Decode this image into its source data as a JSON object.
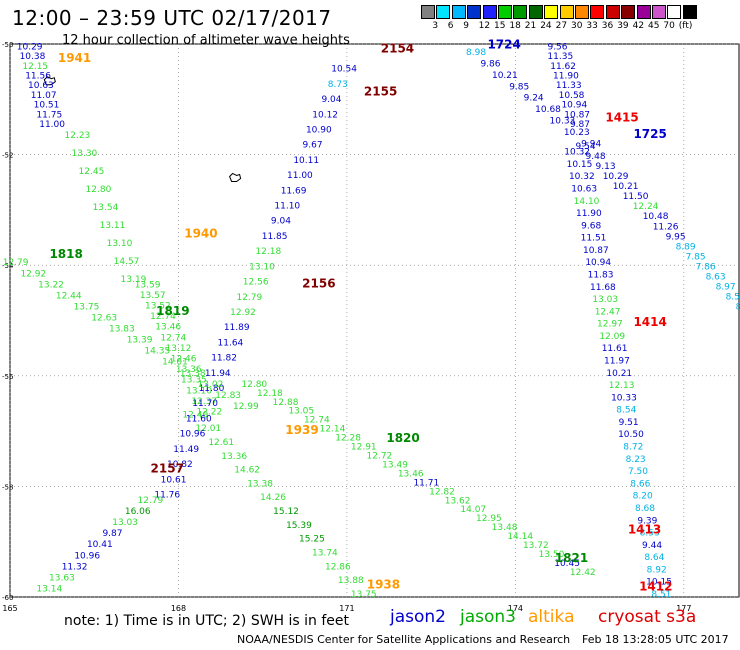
{
  "header": {
    "title": "12:00 – 23:59 UTC 02/17/2017",
    "subtitle": "12 hour collection of altimeter wave heights"
  },
  "colorbar": {
    "colors": [
      "#808080",
      "#00e5ff",
      "#00b8ff",
      "#0033cc",
      "#2222ff",
      "#00cc00",
      "#009900",
      "#006600",
      "#ffff00",
      "#ffcc00",
      "#ff8800",
      "#ff0000",
      "#cc0000",
      "#880000",
      "#990099",
      "#cc55cc",
      "#ffffff",
      "#000000"
    ],
    "labels": [
      "3",
      "6",
      "9",
      "12",
      "15",
      "18",
      "21",
      "24",
      "27",
      "30",
      "33",
      "36",
      "39",
      "42",
      "45",
      "70",
      "(ft)"
    ]
  },
  "map": {
    "lon_ticks": [
      "165",
      "168",
      "171",
      "174",
      "177"
    ],
    "lat_ticks": [
      "-50",
      "-52",
      "-54",
      "-56",
      "-58",
      "-60"
    ],
    "lon_range": [
      165,
      178
    ],
    "lat_range": [
      -60,
      -50
    ],
    "wave_height_colors": {
      "lt_9": "#00b3e6",
      "9_12": "#0000cc",
      "12_15": "#33dd33",
      "15_18": "#009900"
    },
    "pass_label_colors": {
      "jason2": "#0000cc",
      "jason3": "#008800",
      "altika": "#ff9900",
      "cryosat_red": "#ee0000",
      "cryosat_dark": "#800000"
    },
    "pass_labels": [
      {
        "text": "1941",
        "lon": 166.15,
        "lat": -50.33,
        "sat": "altika"
      },
      {
        "text": "2154",
        "lon": 171.9,
        "lat": -50.15,
        "sat": "cryosat_dark"
      },
      {
        "text": "1724",
        "lon": 173.8,
        "lat": -50.08,
        "sat": "jason2"
      },
      {
        "text": "2155",
        "lon": 171.6,
        "lat": -50.93,
        "sat": "cryosat_dark"
      },
      {
        "text": "1415",
        "lon": 175.9,
        "lat": -51.4,
        "sat": "cryosat_red"
      },
      {
        "text": "1725",
        "lon": 176.4,
        "lat": -51.7,
        "sat": "jason2"
      },
      {
        "text": "1940",
        "lon": 168.4,
        "lat": -53.5,
        "sat": "altika"
      },
      {
        "text": "1818",
        "lon": 166.0,
        "lat": -53.87,
        "sat": "jason3"
      },
      {
        "text": "2156",
        "lon": 170.5,
        "lat": -54.4,
        "sat": "cryosat_dark"
      },
      {
        "text": "1819",
        "lon": 167.9,
        "lat": -54.9,
        "sat": "jason3"
      },
      {
        "text": "1414",
        "lon": 176.4,
        "lat": -55.1,
        "sat": "cryosat_red"
      },
      {
        "text": "1939",
        "lon": 170.2,
        "lat": -57.05,
        "sat": "altika"
      },
      {
        "text": "1820",
        "lon": 172.0,
        "lat": -57.2,
        "sat": "jason3"
      },
      {
        "text": "2157",
        "lon": 167.8,
        "lat": -57.75,
        "sat": "cryosat_dark"
      },
      {
        "text": "1413",
        "lon": 176.3,
        "lat": -58.85,
        "sat": "cryosat_red"
      },
      {
        "text": "1821",
        "lon": 175.0,
        "lat": -59.37,
        "sat": "jason3"
      },
      {
        "text": "1938",
        "lon": 171.65,
        "lat": -59.85,
        "sat": "altika"
      },
      {
        "text": "1412",
        "lon": 176.5,
        "lat": -59.88,
        "sat": "cryosat_red"
      }
    ],
    "tracks": [
      {
        "id": "t1941",
        "start": [
          165.35,
          -50.1
        ],
        "end": [
          165.75,
          -51.5
        ],
        "values": [
          "10.29",
          "10.38",
          "12.15",
          "11.56",
          "10.63",
          "11.07",
          "10.51",
          "11.75",
          "11.00"
        ]
      },
      {
        "id": "t1940",
        "start": [
          166.2,
          -51.7
        ],
        "end": [
          167.2,
          -54.3
        ],
        "values": [
          "12.23",
          "13.30",
          "12.45",
          "12.80",
          "13.54",
          "13.11",
          "13.10",
          "14.57",
          "13.19"
        ]
      },
      {
        "id": "t1819",
        "start": [
          167.45,
          -54.4
        ],
        "end": [
          168.55,
          -56.7
        ],
        "values": [
          "13.59",
          "13.57",
          "13.52",
          "12.74",
          "13.46",
          "12.74",
          "13.12",
          "12.46",
          "13.36",
          "13.35",
          "13.10",
          "12.37",
          "12.22"
        ]
      },
      {
        "id": "t1939",
        "start": [
          168.3,
          -56.75
        ],
        "end": [
          171.3,
          -60.0
        ],
        "values": [
          "12.40",
          "12.01",
          "12.61",
          "13.36",
          "14.62",
          "13.38",
          "14.26",
          "15.12",
          "15.39",
          "15.25",
          "13.74",
          "12.86",
          "13.88",
          "13.75"
        ]
      },
      {
        "id": "t2155",
        "start": [
          170.95,
          -50.5
        ],
        "end": [
          167.8,
          -58.2
        ],
        "values": [
          "10.54",
          "8.73",
          "9.04",
          "10.12",
          "10.90",
          "9.67",
          "10.11",
          "11.00",
          "11.69",
          "11.10",
          "9.04",
          "11.85",
          "12.18",
          "13.10",
          "12.56",
          "12.79",
          "12.92",
          "11.89",
          "11.64",
          "11.82",
          "11.94",
          "11.80",
          "11.70",
          "11.60",
          "10.96",
          "11.49",
          "10.82",
          "10.61",
          "11.76"
        ]
      },
      {
        "id": "t2157",
        "start": [
          167.5,
          -58.3
        ],
        "end": [
          165.7,
          -59.9
        ],
        "values": [
          "12.79",
          "16.06",
          "13.03",
          "9.87",
          "10.41",
          "10.96",
          "11.32",
          "13.63",
          "13.14"
        ]
      },
      {
        "id": "t1818",
        "start": [
          165.1,
          -54.0
        ],
        "end": [
          169.2,
          -56.6
        ],
        "values": [
          "12.79",
          "12.92",
          "13.22",
          "12.44",
          "13.75",
          "12.63",
          "13.83",
          "13.39",
          "14.35",
          "14.01",
          "13.38",
          "13.02",
          "12.83",
          "12.99"
        ]
      },
      {
        "id": "t1820",
        "start": [
          169.35,
          -56.2
        ],
        "end": [
          175.2,
          -59.6
        ],
        "values": [
          "12.80",
          "12.18",
          "12.88",
          "13.05",
          "12.74",
          "12.14",
          "12.28",
          "12.91",
          "12.72",
          "13.49",
          "13.46",
          "11.71",
          "12.82",
          "13.62",
          "14.07",
          "12.95",
          "13.48",
          "14.14",
          "13.72",
          "13.50",
          "10.45",
          "12.42"
        ]
      },
      {
        "id": "t1724",
        "start": [
          173.3,
          -50.2
        ],
        "end": [
          175.35,
          -51.85
        ],
        "values": [
          "8.98",
          "9.86",
          "10.21",
          "9.85",
          "9.24",
          "10.68",
          "10.33",
          "10.23",
          "9.94"
        ]
      },
      {
        "id": "t1725",
        "start": [
          174.75,
          -50.1
        ],
        "end": [
          175.15,
          -51.5
        ],
        "values": [
          "9.56",
          "11.35",
          "11.62",
          "11.90",
          "11.33",
          "10.58",
          "10.94",
          "10.87",
          "9.87"
        ]
      },
      {
        "id": "t1725b",
        "start": [
          175.25,
          -51.9
        ],
        "end": [
          178.1,
          -54.8
        ],
        "values": [
          "9.54",
          "9.48",
          "9.13",
          "10.29",
          "10.21",
          "11.50",
          "12.24",
          "10.48",
          "11.26",
          "9.95",
          "8.89",
          "7.85",
          "7.86",
          "8.63",
          "8.97",
          "8.51",
          "8.66"
        ]
      },
      {
        "id": "t1414",
        "start": [
          175.1,
          -52.0
        ],
        "end": [
          176.6,
          -60.0
        ],
        "values": [
          "10.32",
          "10.15",
          "10.32",
          "10.63",
          "14.10",
          "11.90",
          "9.68",
          "11.51",
          "10.87",
          "10.94",
          "11.83",
          "11.68",
          "13.03",
          "12.47",
          "12.97",
          "12.09",
          "11.61",
          "11.97",
          "10.21",
          "12.13",
          "10.33",
          "8.54",
          "9.51",
          "10.50",
          "8.72",
          "8.23",
          "7.50",
          "8.66",
          "8.20",
          "8.68",
          "9.39",
          "8.53",
          "9.44",
          "8.64",
          "8.92",
          "10.15",
          "8.51"
        ]
      }
    ],
    "islands": [
      {
        "lon": 165.7,
        "lat": -50.7
      },
      {
        "lon": 169.0,
        "lat": -52.45
      }
    ]
  },
  "legend": {
    "note": "note:  1) Time is in UTC;  2) SWH is in feet",
    "satellites": [
      {
        "label": "jason2",
        "color": "#0000cc"
      },
      {
        "label": "jason3",
        "color": "#00aa00"
      },
      {
        "label": "altika",
        "color": "#ff9900"
      },
      {
        "label": "cryosat s3a",
        "color": "#dd0000"
      }
    ]
  },
  "footer": {
    "center": "NOAA/NESDIS Center for Satellite Applications and Research",
    "timestamp": "Feb 18 13:28:05 UTC 2017"
  }
}
